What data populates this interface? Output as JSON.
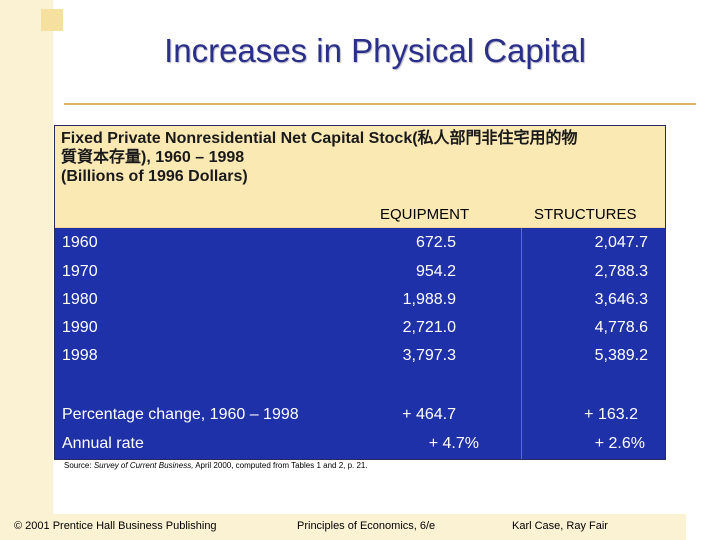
{
  "slide": {
    "title": "Increases in Physical Capital"
  },
  "table": {
    "header_line1": "Fixed Private Nonresidential Net Capital Stock(私人部門非住宅用的物",
    "header_line2": "質資本存量), 1960 – 1998",
    "header_line3": "(Billions of 1996 Dollars)",
    "col_equipment": "EQUIPMENT",
    "col_structures": "STRUCTURES",
    "rows": [
      {
        "label": "1960",
        "equipment": "672.5",
        "structures": "2,047.7"
      },
      {
        "label": "1970",
        "equipment": "954.2",
        "structures": "2,788.3"
      },
      {
        "label": "1980",
        "equipment": "1,988.9",
        "structures": "3,646.3"
      },
      {
        "label": "1990",
        "equipment": "2,721.0",
        "structures": "4,778.6"
      },
      {
        "label": "1998",
        "equipment": "3,797.3",
        "structures": "5,389.2"
      },
      {
        "label": "Percentage change, 1960 – 1998",
        "equipment": "+ 464.7",
        "structures": "+ 163.2"
      },
      {
        "label": "Annual rate",
        "equipment": "+ 4.7%",
        "structures": "+ 2.6%"
      }
    ]
  },
  "source": {
    "prefix": "Source:",
    "publication": "Survey of Current Business,",
    "detail": "April 2000, computed from Tables 1 and 2, p. 21."
  },
  "footer": {
    "copyright": "© 2001 Prentice Hall Business Publishing",
    "book": "Principles of Economics, 6/e",
    "authors": "Karl Case, Ray Fair"
  },
  "colors": {
    "title": "#2a2f8a",
    "table_header_bg": "#fbe9b4",
    "table_body_bg": "#1f31a8",
    "accent_line": "#d9b45c"
  }
}
